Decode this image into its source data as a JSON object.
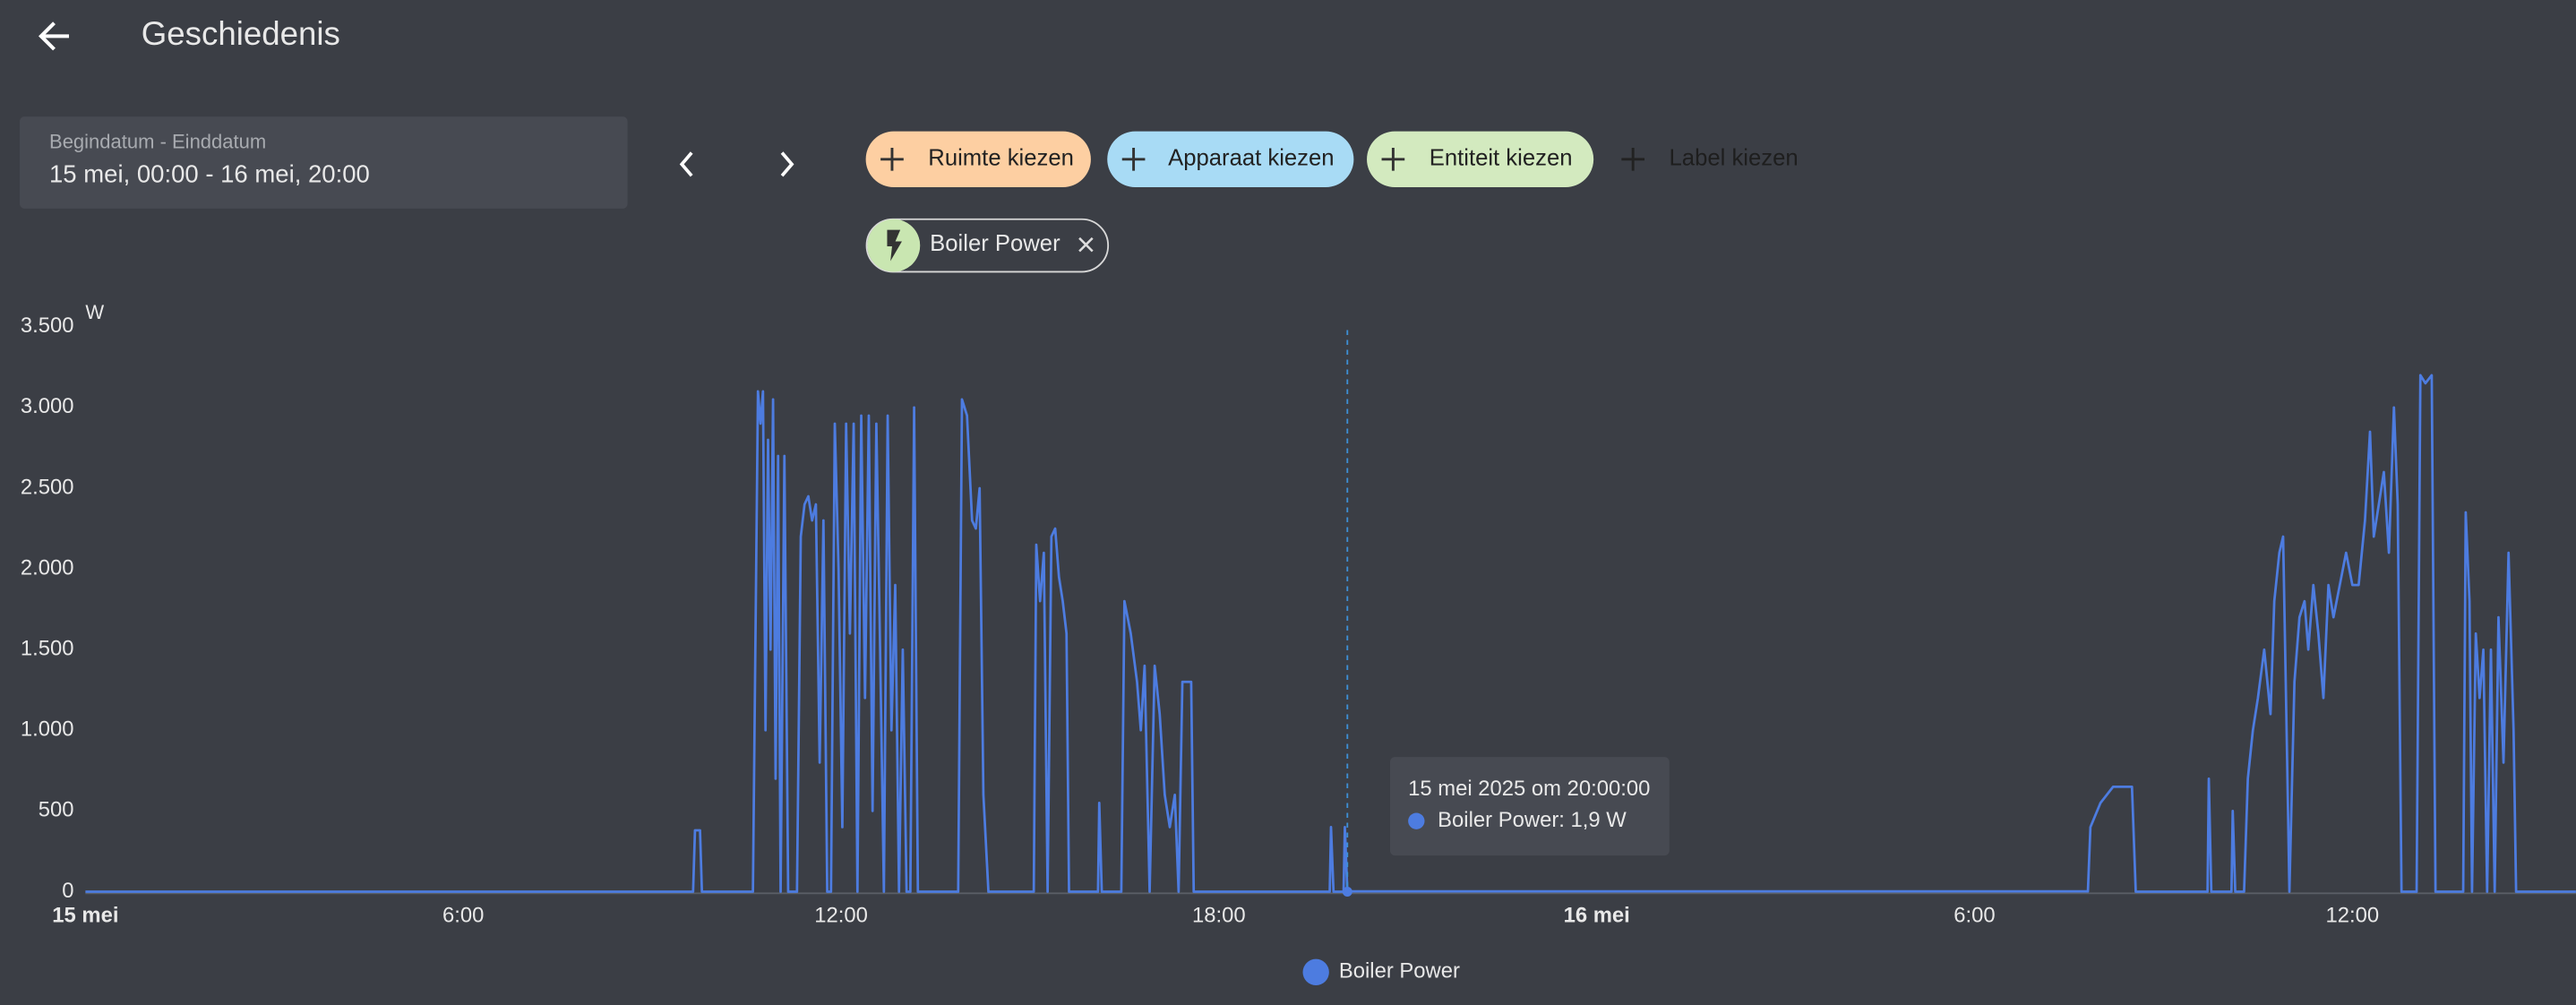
{
  "header": {
    "title": "Geschiedenis"
  },
  "date_picker": {
    "label": "Begindatum - Einddatum",
    "value": "15 mei, 00:00 - 16 mei, 20:00"
  },
  "filters": [
    "Ruimte kiezen",
    "Apparaat kiezen",
    "Entiteit kiezen",
    "Label kiezen"
  ],
  "selected": [
    "Boiler Power"
  ],
  "chart_data": {
    "type": "line",
    "y_axis_label": "W",
    "xlim": [
      0,
      39.55
    ],
    "xticks": [
      {
        "value": 0,
        "label": "15 mei"
      },
      {
        "value": 6,
        "label": "6:00"
      },
      {
        "value": 12,
        "label": "12:00"
      },
      {
        "value": 18,
        "label": "18:00"
      },
      {
        "value": 24,
        "label": "16 mei"
      },
      {
        "value": 30,
        "label": "6:00"
      },
      {
        "value": 36,
        "label": "12:00"
      }
    ],
    "ylim": [
      0,
      3500
    ],
    "yticks": [
      0,
      500,
      {
        "value": 1000,
        "label": "1.000"
      },
      {
        "value": 1500,
        "label": "1.500"
      },
      {
        "value": 2000,
        "label": "2.000"
      },
      {
        "value": 2500,
        "label": "2.500"
      },
      {
        "value": 3000,
        "label": "3.000"
      },
      {
        "value": 3500,
        "label": "3.500"
      }
    ],
    "x": [
      0,
      9.65,
      9.68,
      9.76,
      9.79,
      10.6,
      10.68,
      10.72,
      10.76,
      10.8,
      10.84,
      10.88,
      10.92,
      10.96,
      11.0,
      11.04,
      11.1,
      11.16,
      11.3,
      11.36,
      11.42,
      11.48,
      11.54,
      11.6,
      11.66,
      11.72,
      11.78,
      11.84,
      11.9,
      11.96,
      12.02,
      12.08,
      12.14,
      12.2,
      12.26,
      12.32,
      12.38,
      12.44,
      12.5,
      12.56,
      12.62,
      12.68,
      12.74,
      12.8,
      12.86,
      12.92,
      12.98,
      13.04,
      13.1,
      13.16,
      13.22,
      13.86,
      13.92,
      14.0,
      14.08,
      14.14,
      14.2,
      14.26,
      14.34,
      15.06,
      15.1,
      15.16,
      15.22,
      15.28,
      15.34,
      15.4,
      15.46,
      15.52,
      15.58,
      15.62,
      16.08,
      16.1,
      16.14,
      16.45,
      16.5,
      16.6,
      16.7,
      16.76,
      16.82,
      16.9,
      16.98,
      17.06,
      17.14,
      17.22,
      17.3,
      17.36,
      17.42,
      17.56,
      17.6,
      19.76,
      19.78,
      19.82,
      19.98,
      20.0,
      20.04,
      31.8,
      31.84,
      32.0,
      32.2,
      32.5,
      32.56,
      33.7,
      33.72,
      33.76,
      34.08,
      34.1,
      34.14,
      34.28,
      34.34,
      34.42,
      34.5,
      34.6,
      34.7,
      34.76,
      34.84,
      34.9,
      34.96,
      35.0,
      35.08,
      35.16,
      35.24,
      35.3,
      35.38,
      35.46,
      35.54,
      35.62,
      35.7,
      35.8,
      35.9,
      36.0,
      36.1,
      36.2,
      36.28,
      36.34,
      36.42,
      36.5,
      36.58,
      36.66,
      36.72,
      36.78,
      37.02,
      37.08,
      37.16,
      37.26,
      37.32,
      37.76,
      37.8,
      37.86,
      37.9,
      37.96,
      38.02,
      38.08,
      38.14,
      38.2,
      38.26,
      38.32,
      38.4,
      38.48,
      38.56,
      38.6,
      39.55
    ],
    "series": [
      {
        "name": "Boiler Power",
        "color": "#4d7ce0",
        "values": [
          0,
          0,
          380,
          380,
          0,
          0,
          3100,
          2900,
          3100,
          1000,
          2800,
          1500,
          3050,
          700,
          2700,
          0,
          2700,
          0,
          0,
          2200,
          2400,
          2450,
          2300,
          2400,
          800,
          2300,
          0,
          0,
          2900,
          2000,
          400,
          2900,
          1600,
          2900,
          0,
          2950,
          1200,
          2950,
          500,
          2900,
          1500,
          0,
          2950,
          1000,
          1900,
          0,
          1500,
          0,
          0,
          3000,
          0,
          0,
          3050,
          2950,
          2300,
          2250,
          2500,
          600,
          0,
          0,
          2150,
          1800,
          2100,
          0,
          2200,
          2250,
          1950,
          1800,
          1600,
          0,
          0,
          550,
          0,
          0,
          1800,
          1600,
          1300,
          1000,
          1400,
          0,
          1400,
          1100,
          600,
          400,
          600,
          0,
          1300,
          1300,
          0,
          0,
          400,
          0,
          0,
          400,
          1.9,
          1.9,
          400,
          550,
          650,
          650,
          0,
          0,
          700,
          0,
          0,
          500,
          0,
          0,
          700,
          1000,
          1200,
          1500,
          1100,
          1800,
          2100,
          2200,
          900,
          0,
          1300,
          1700,
          1800,
          1500,
          1900,
          1600,
          1200,
          1900,
          1700,
          1900,
          2100,
          1900,
          1900,
          2300,
          2850,
          2200,
          2400,
          2600,
          2100,
          3000,
          2400,
          0,
          0,
          3200,
          3150,
          3200,
          0,
          0,
          2350,
          1800,
          0,
          1600,
          1200,
          1500,
          0,
          1500,
          0,
          1700,
          800,
          2100,
          1000,
          0,
          0
        ]
      }
    ],
    "tooltip": {
      "x": 20.04,
      "title": "15 mei 2025 om 20:00:00",
      "text": "Boiler Power: 1,9 W"
    }
  }
}
